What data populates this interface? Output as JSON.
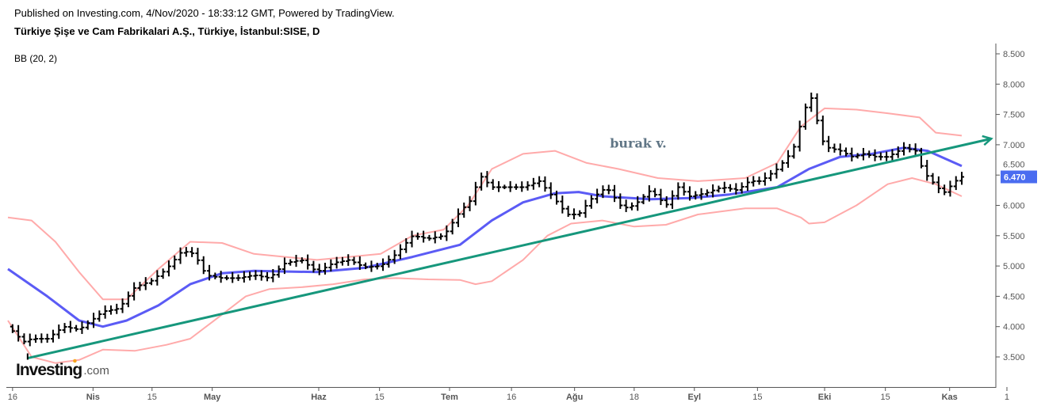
{
  "header": {
    "published": "Published on Investing.com, 4/Nov/2020 - 18:33:12 GMT, Powered by TradingView.",
    "title": "Türkiye Şişe ve Cam Fabrikalari A.Ş., Türkiye, İstanbul:SISE, D",
    "indicator": "BB (20, 2)"
  },
  "watermark": {
    "brand": "Investing",
    "suffix": ".com"
  },
  "colors": {
    "bars": "#000000",
    "basis": "#5b5bf5",
    "bands": "#ffaaaa",
    "trend": "#16977c",
    "price_tag": "#4a6cf0",
    "annotation": "#5f7585"
  },
  "chart_data": {
    "type": "ohlc",
    "title": "Türkiye Şişe ve Cam Fabrikalari A.Ş., Türkiye, İstanbul:SISE, D",
    "ylim": [
      3.1,
      8.6
    ],
    "xlim": [
      -0.3,
      171.5
    ],
    "y_ticks": [
      "8.500",
      "8.000",
      "7.500",
      "7.000",
      "6.500",
      "6.000",
      "5.500",
      "5.000",
      "4.500",
      "4.000",
      "3.500"
    ],
    "y_tick_values": [
      8.5,
      8.0,
      7.5,
      7.0,
      6.5,
      6.0,
      5.5,
      5.0,
      4.5,
      4.0,
      3.5
    ],
    "x_ticks": [
      {
        "t": 0.8,
        "label": "16",
        "major": false
      },
      {
        "t": 14.7,
        "label": "Nis",
        "major": true
      },
      {
        "t": 24.9,
        "label": "15",
        "major": false
      },
      {
        "t": 35.3,
        "label": "May",
        "major": true
      },
      {
        "t": 53.7,
        "label": "Haz",
        "major": true
      },
      {
        "t": 64.2,
        "label": "15",
        "major": false
      },
      {
        "t": 76.3,
        "label": "Tem",
        "major": true
      },
      {
        "t": 87,
        "label": "16",
        "major": false
      },
      {
        "t": 97.9,
        "label": "Ağu",
        "major": true
      },
      {
        "t": 108.2,
        "label": "18",
        "major": false
      },
      {
        "t": 118.6,
        "label": "Eyl",
        "major": true
      },
      {
        "t": 129.5,
        "label": "15",
        "major": false
      },
      {
        "t": 141.1,
        "label": "Eki",
        "major": true
      },
      {
        "t": 151.6,
        "label": "15",
        "major": false
      },
      {
        "t": 162.7,
        "label": "Kas",
        "major": true
      },
      {
        "t": 172.6,
        "label": "1",
        "major": false
      }
    ],
    "last_price": "6.470",
    "last_price_value": 6.47,
    "close_keypoints": [
      [
        0,
        4.0
      ],
      [
        2.7,
        3.75
      ],
      [
        4.1,
        3.8
      ],
      [
        6.8,
        3.8
      ],
      [
        9.6,
        4.0
      ],
      [
        12.3,
        3.95
      ],
      [
        14.4,
        4.1
      ],
      [
        16.4,
        4.25
      ],
      [
        19.2,
        4.3
      ],
      [
        21.9,
        4.65
      ],
      [
        24.7,
        4.75
      ],
      [
        27.4,
        4.95
      ],
      [
        30.1,
        5.25
      ],
      [
        32.2,
        5.2
      ],
      [
        34.2,
        4.85
      ],
      [
        37,
        4.8
      ],
      [
        39.7,
        4.8
      ],
      [
        42.5,
        4.85
      ],
      [
        45.2,
        4.8
      ],
      [
        47.9,
        5.05
      ],
      [
        50.7,
        5.1
      ],
      [
        53.4,
        4.9
      ],
      [
        56.2,
        5.05
      ],
      [
        58.9,
        5.1
      ],
      [
        61.6,
        4.98
      ],
      [
        64.4,
        5.0
      ],
      [
        67.1,
        5.2
      ],
      [
        69.9,
        5.5
      ],
      [
        72.6,
        5.45
      ],
      [
        75.3,
        5.5
      ],
      [
        78.1,
        5.9
      ],
      [
        80.1,
        6.1
      ],
      [
        81.5,
        6.5
      ],
      [
        83.6,
        6.3
      ],
      [
        86.3,
        6.3
      ],
      [
        89,
        6.3
      ],
      [
        91.8,
        6.4
      ],
      [
        94.5,
        6.1
      ],
      [
        96.6,
        5.85
      ],
      [
        98.6,
        5.85
      ],
      [
        100.7,
        6.1
      ],
      [
        103.4,
        6.3
      ],
      [
        106.2,
        5.95
      ],
      [
        108.2,
        6.0
      ],
      [
        111,
        6.25
      ],
      [
        113.7,
        6.0
      ],
      [
        115.8,
        6.3
      ],
      [
        117.8,
        6.15
      ],
      [
        120.5,
        6.2
      ],
      [
        123.3,
        6.3
      ],
      [
        126,
        6.25
      ],
      [
        128.1,
        6.4
      ],
      [
        130.1,
        6.4
      ],
      [
        132.9,
        6.6
      ],
      [
        135.6,
        6.9
      ],
      [
        137.7,
        7.6
      ],
      [
        139,
        7.8
      ],
      [
        140.4,
        7.1
      ],
      [
        141.8,
        6.95
      ],
      [
        143.8,
        6.9
      ],
      [
        145.9,
        6.8
      ],
      [
        147.9,
        6.85
      ],
      [
        150,
        6.8
      ],
      [
        152,
        6.8
      ],
      [
        154.8,
        6.95
      ],
      [
        156.8,
        6.9
      ],
      [
        158.2,
        6.55
      ],
      [
        159.6,
        6.4
      ],
      [
        161.6,
        6.2
      ],
      [
        163.7,
        6.4
      ],
      [
        164.8,
        6.47
      ]
    ],
    "series": [
      {
        "name": "BB basis",
        "points": [
          [
            0,
            4.95
          ],
          [
            6.8,
            4.5
          ],
          [
            12.3,
            4.1
          ],
          [
            16.4,
            4.0
          ],
          [
            20.5,
            4.1
          ],
          [
            26,
            4.35
          ],
          [
            31.5,
            4.7
          ],
          [
            37,
            4.88
          ],
          [
            42.5,
            4.92
          ],
          [
            53.4,
            4.9
          ],
          [
            61.6,
            4.97
          ],
          [
            69.9,
            5.15
          ],
          [
            78.1,
            5.35
          ],
          [
            83.6,
            5.75
          ],
          [
            89,
            6.05
          ],
          [
            94.5,
            6.2
          ],
          [
            98.6,
            6.22
          ],
          [
            102.7,
            6.15
          ],
          [
            111,
            6.1
          ],
          [
            117.8,
            6.12
          ],
          [
            124.7,
            6.18
          ],
          [
            132.9,
            6.3
          ],
          [
            138.4,
            6.6
          ],
          [
            143.8,
            6.8
          ],
          [
            149.3,
            6.85
          ],
          [
            154.8,
            6.95
          ],
          [
            158.9,
            6.9
          ],
          [
            164.8,
            6.65
          ]
        ]
      },
      {
        "name": "BB upper",
        "points": [
          [
            0,
            5.8
          ],
          [
            4.1,
            5.75
          ],
          [
            8.2,
            5.4
          ],
          [
            12.3,
            4.9
          ],
          [
            16.4,
            4.45
          ],
          [
            20.5,
            4.45
          ],
          [
            26,
            4.95
          ],
          [
            31.5,
            5.4
          ],
          [
            37,
            5.38
          ],
          [
            42.5,
            5.2
          ],
          [
            47.9,
            5.15
          ],
          [
            53.4,
            5.1
          ],
          [
            58.9,
            5.15
          ],
          [
            64.4,
            5.2
          ],
          [
            69.9,
            5.5
          ],
          [
            75.3,
            5.6
          ],
          [
            79.5,
            6.0
          ],
          [
            83.6,
            6.6
          ],
          [
            89,
            6.85
          ],
          [
            94.5,
            6.9
          ],
          [
            100,
            6.7
          ],
          [
            105.5,
            6.6
          ],
          [
            112.3,
            6.45
          ],
          [
            119.2,
            6.4
          ],
          [
            127.4,
            6.45
          ],
          [
            132.9,
            6.7
          ],
          [
            137,
            7.3
          ],
          [
            141.1,
            7.6
          ],
          [
            146.6,
            7.58
          ],
          [
            152,
            7.52
          ],
          [
            157.5,
            7.45
          ],
          [
            160.3,
            7.2
          ],
          [
            164.8,
            7.15
          ]
        ]
      },
      {
        "name": "BB lower",
        "points": [
          [
            0,
            4.1
          ],
          [
            4.1,
            3.5
          ],
          [
            8.2,
            3.4
          ],
          [
            12.3,
            3.45
          ],
          [
            16.4,
            3.62
          ],
          [
            21.9,
            3.6
          ],
          [
            27.4,
            3.7
          ],
          [
            31.5,
            3.8
          ],
          [
            37,
            4.2
          ],
          [
            41.1,
            4.5
          ],
          [
            45.2,
            4.62
          ],
          [
            50.7,
            4.65
          ],
          [
            56.2,
            4.7
          ],
          [
            61.6,
            4.78
          ],
          [
            67.1,
            4.8
          ],
          [
            72.6,
            4.78
          ],
          [
            78.1,
            4.77
          ],
          [
            80.8,
            4.7
          ],
          [
            83.6,
            4.75
          ],
          [
            89,
            5.1
          ],
          [
            93.2,
            5.5
          ],
          [
            97.3,
            5.7
          ],
          [
            102.7,
            5.75
          ],
          [
            108.2,
            5.65
          ],
          [
            113.7,
            5.68
          ],
          [
            119.2,
            5.85
          ],
          [
            127.4,
            5.95
          ],
          [
            132.9,
            5.95
          ],
          [
            137,
            5.8
          ],
          [
            138.4,
            5.7
          ],
          [
            141.1,
            5.72
          ],
          [
            146.6,
            6.0
          ],
          [
            152,
            6.35
          ],
          [
            156.2,
            6.45
          ],
          [
            160.3,
            6.35
          ],
          [
            164.8,
            6.15
          ]
        ]
      }
    ],
    "trendline": {
      "from": [
        3.4,
        3.48
      ],
      "to": [
        169.9,
        7.1
      ]
    },
    "annotation": {
      "text": "burak v.",
      "t": 104,
      "price": 6.95
    }
  }
}
